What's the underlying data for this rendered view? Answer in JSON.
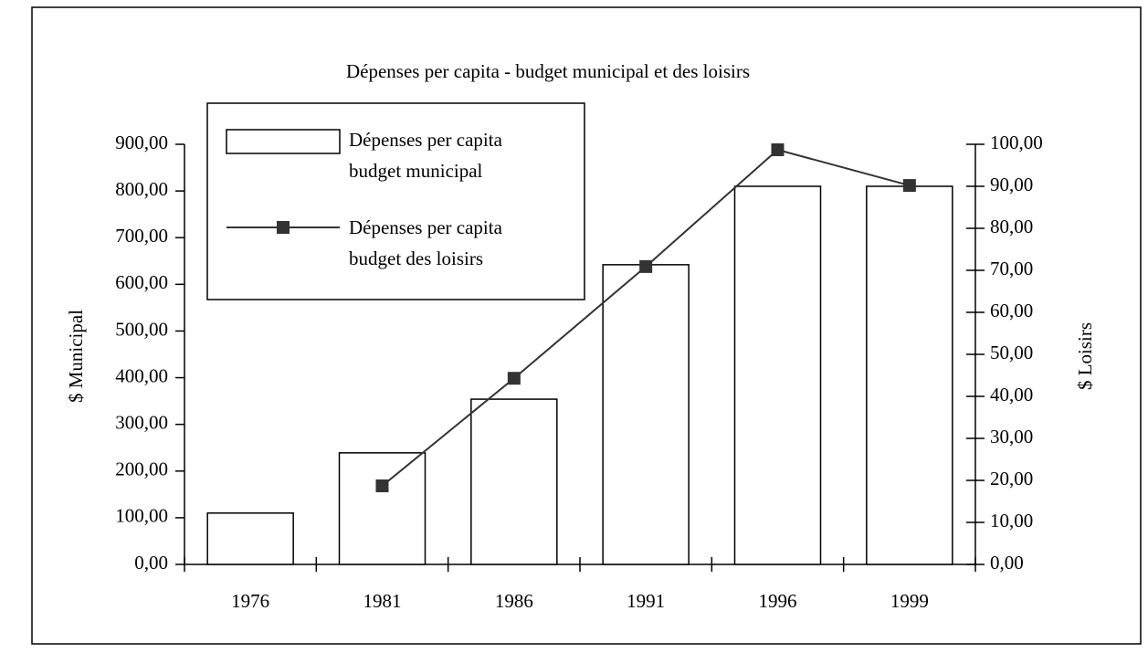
{
  "chart_data": {
    "type": "bar",
    "title": "Dépenses per capita - budget municipal et des loisirs",
    "categories": [
      "1976",
      "1981",
      "1986",
      "1991",
      "1996",
      "1999"
    ],
    "series": [
      {
        "name": "Dépenses per capita budget municipal",
        "type": "bar",
        "color": "#ffffff",
        "values": [
          110,
          239,
          354,
          642,
          810,
          810
        ]
      },
      {
        "name": "Dépenses per capita budget des loisirs",
        "type": "line",
        "axis": "y2",
        "color": "#333333",
        "values": [
          null,
          18.7,
          44.3,
          70.9,
          98.7,
          90.2
        ]
      }
    ],
    "ylabel": "$ Municipal",
    "y2label": "$ Loisirs",
    "ylim": [
      0,
      900
    ],
    "yticks": [
      {
        "value": 0,
        "label": "0,00"
      },
      {
        "value": 100,
        "label": "100,00"
      },
      {
        "value": 200,
        "label": "200,00"
      },
      {
        "value": 300,
        "label": "300,00"
      },
      {
        "value": 400,
        "label": "400,00"
      },
      {
        "value": 500,
        "label": "500,00"
      },
      {
        "value": 600,
        "label": "600,00"
      },
      {
        "value": 700,
        "label": "700,00"
      },
      {
        "value": 800,
        "label": "800,00"
      },
      {
        "value": 900,
        "label": "900,00"
      }
    ],
    "y2lim": [
      0,
      100
    ],
    "y2ticks": [
      {
        "value": 0,
        "label": "0,00"
      },
      {
        "value": 10,
        "label": "10,00"
      },
      {
        "value": 20,
        "label": "20,00"
      },
      {
        "value": 30,
        "label": "30,00"
      },
      {
        "value": 40,
        "label": "40,00"
      },
      {
        "value": 50,
        "label": "50,00"
      },
      {
        "value": 60,
        "label": "60,00"
      },
      {
        "value": 70,
        "label": "70,00"
      },
      {
        "value": 80,
        "label": "80,00"
      },
      {
        "value": 90,
        "label": "90,00"
      },
      {
        "value": 100,
        "label": "100,00"
      }
    ],
    "legend": "upper left",
    "grid": false
  }
}
